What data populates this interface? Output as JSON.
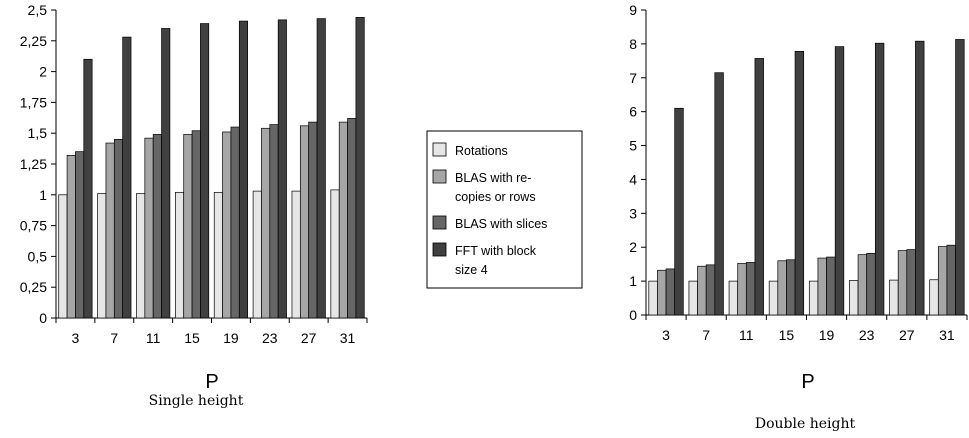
{
  "legend": {
    "entries": [
      {
        "lines": [
          "Rotations"
        ],
        "color": "#e6e6e6"
      },
      {
        "lines": [
          "BLAS with re-",
          "copies or rows"
        ],
        "color": "#a6a6a6"
      },
      {
        "lines": [
          "BLAS with slices"
        ],
        "color": "#666666"
      },
      {
        "lines": [
          "FFT with block",
          "size 4"
        ],
        "color": "#404040"
      }
    ]
  },
  "chart_data": [
    {
      "type": "bar",
      "caption": "Single height",
      "xlabel": "P",
      "ylabel": "",
      "ylim": [
        0,
        2.5
      ],
      "yticks": [
        "0",
        "0,25",
        "0,5",
        "0,75",
        "1",
        "1,25",
        "1,5",
        "1,75",
        "2",
        "2,25",
        "2,5"
      ],
      "categories": [
        "3",
        "7",
        "11",
        "15",
        "19",
        "23",
        "27",
        "31"
      ],
      "series": [
        {
          "name": "Rotations",
          "values": [
            1.0,
            1.01,
            1.01,
            1.02,
            1.02,
            1.03,
            1.03,
            1.04
          ]
        },
        {
          "name": "BLAS with re-copies or rows",
          "values": [
            1.32,
            1.42,
            1.46,
            1.49,
            1.51,
            1.54,
            1.56,
            1.59
          ]
        },
        {
          "name": "BLAS with slices",
          "values": [
            1.35,
            1.45,
            1.49,
            1.52,
            1.55,
            1.57,
            1.59,
            1.62
          ]
        },
        {
          "name": "FFT with block size 4",
          "values": [
            2.1,
            2.28,
            2.35,
            2.39,
            2.41,
            2.42,
            2.43,
            2.44
          ]
        }
      ]
    },
    {
      "type": "bar",
      "caption": "Double height",
      "xlabel": "P",
      "ylabel": "",
      "ylim": [
        0,
        9
      ],
      "yticks": [
        "0",
        "1",
        "2",
        "3",
        "4",
        "5",
        "6",
        "7",
        "8",
        "9"
      ],
      "categories": [
        "3",
        "7",
        "11",
        "15",
        "19",
        "23",
        "27",
        "31"
      ],
      "series": [
        {
          "name": "Rotations",
          "values": [
            1.0,
            1.0,
            1.0,
            1.0,
            1.0,
            1.02,
            1.03,
            1.04
          ]
        },
        {
          "name": "BLAS with re-copies or rows",
          "values": [
            1.32,
            1.44,
            1.52,
            1.6,
            1.68,
            1.78,
            1.9,
            2.02
          ]
        },
        {
          "name": "BLAS with slices",
          "values": [
            1.36,
            1.48,
            1.55,
            1.63,
            1.71,
            1.82,
            1.93,
            2.06
          ]
        },
        {
          "name": "FFT with block size 4",
          "values": [
            6.1,
            7.15,
            7.57,
            7.78,
            7.92,
            8.02,
            8.08,
            8.13
          ]
        }
      ]
    }
  ]
}
